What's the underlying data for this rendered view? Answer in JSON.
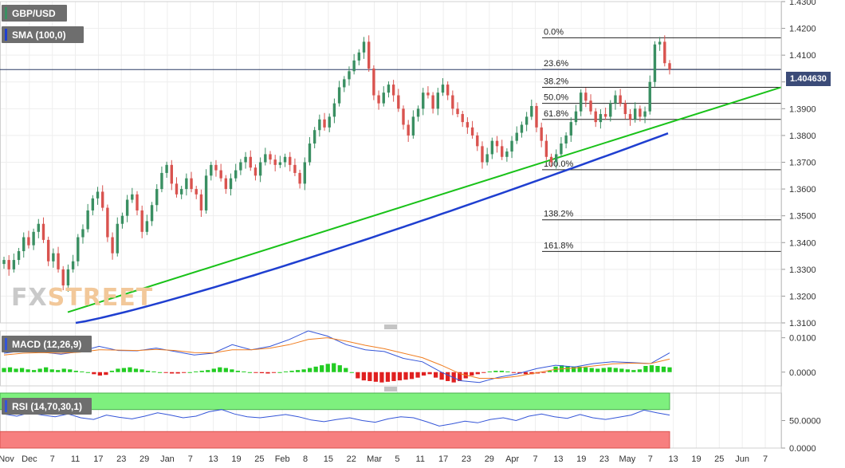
{
  "symbol_label": "GBP/USD",
  "sma_label": "SMA (100,0)",
  "macd_label": "MACD (12,26,9)",
  "rsi_label": "RSI (14,70,30,1)",
  "last_price": "1.404630",
  "watermark": {
    "a": "FX",
    "b": "STREET"
  },
  "colors": {
    "up": "#3a8f62",
    "down": "#d9534f",
    "sma": "#1f3fd0",
    "trend": "#19c219",
    "macd_line": "#3455d8",
    "signal_line": "#f07d20",
    "hist_pos": "#22cc22",
    "hist_neg": "#e02020",
    "rsi_line": "#3455d8",
    "rsi_overbought": "#7ef07e",
    "rsi_oversold": "#f77f7f",
    "fib_line": "#222222",
    "last_price_bg": "#3b4b78"
  },
  "chart_data": [
    {
      "type": "candlestick",
      "title": "GBP/USD",
      "ylim": [
        1.31,
        1.43
      ],
      "y_ticks": [
        "1.4300",
        "1.4200",
        "1.4100",
        "1.4000",
        "1.3900",
        "1.3800",
        "1.3700",
        "1.3600",
        "1.3500",
        "1.3400",
        "1.3300",
        "1.3200",
        "1.3100"
      ],
      "x_ticks": [
        "Nov",
        "Dec",
        "7",
        "11",
        "17",
        "23",
        "29",
        "Jan",
        "7",
        "13",
        "19",
        "25",
        "Feb",
        "8",
        "15",
        "22",
        "Mar",
        "5",
        "11",
        "17",
        "23",
        "29",
        "Apr",
        "7",
        "13",
        "19",
        "23",
        "May",
        "7",
        "13",
        "19",
        "25",
        "Jun",
        "7"
      ],
      "closes": [
        1.3335,
        1.33,
        1.3335,
        1.3368,
        1.342,
        1.339,
        1.344,
        1.347,
        1.341,
        1.333,
        1.336,
        1.33,
        1.324,
        1.33,
        1.333,
        1.342,
        1.345,
        1.352,
        1.3565,
        1.359,
        1.353,
        1.342,
        1.336,
        1.347,
        1.35,
        1.356,
        1.358,
        1.352,
        1.344,
        1.348,
        1.354,
        1.36,
        1.366,
        1.369,
        1.362,
        1.358,
        1.36,
        1.364,
        1.36,
        1.358,
        1.352,
        1.365,
        1.369,
        1.367,
        1.364,
        1.36,
        1.364,
        1.367,
        1.37,
        1.372,
        1.368,
        1.365,
        1.37,
        1.373,
        1.371,
        1.369,
        1.37,
        1.372,
        1.369,
        1.366,
        1.362,
        1.37,
        1.377,
        1.382,
        1.386,
        1.383,
        1.387,
        1.392,
        1.398,
        1.401,
        1.404,
        1.408,
        1.411,
        1.415,
        1.405,
        1.395,
        1.392,
        1.396,
        1.399,
        1.395,
        1.39,
        1.384,
        1.38,
        1.387,
        1.39,
        1.396,
        1.395,
        1.39,
        1.396,
        1.399,
        1.395,
        1.39,
        1.388,
        1.385,
        1.383,
        1.38,
        1.376,
        1.37,
        1.373,
        1.378,
        1.376,
        1.372,
        1.374,
        1.378,
        1.381,
        1.384,
        1.387,
        1.391,
        1.383,
        1.378,
        1.372,
        1.37,
        1.373,
        1.377,
        1.38,
        1.385,
        1.389,
        1.396,
        1.393,
        1.389,
        1.385,
        1.388,
        1.387,
        1.392,
        1.395,
        1.392,
        1.388,
        1.386,
        1.39,
        1.387,
        1.389,
        1.4,
        1.414,
        1.415,
        1.407,
        1.4046
      ],
      "sma_100": {
        "start": 1.31,
        "end": 1.3808
      },
      "trendline": {
        "start": 1.314,
        "end": 1.398
      },
      "fibonacci": [
        {
          "label": "0.0%",
          "value": 1.4165
        },
        {
          "label": "23.6%",
          "value": 1.4047
        },
        {
          "label": "38.2%",
          "value": 1.398
        },
        {
          "label": "50.0%",
          "value": 1.392
        },
        {
          "label": "61.8%",
          "value": 1.386
        },
        {
          "label": "100.0%",
          "value": 1.3672
        },
        {
          "label": "138.2%",
          "value": 1.3485
        },
        {
          "label": "161.8%",
          "value": 1.3367
        }
      ],
      "last_value": 1.40463
    },
    {
      "type": "line",
      "title": "MACD (12,26,9)",
      "ylim": [
        -0.004,
        0.012
      ],
      "y_ticks": [
        "0.0100",
        "0.0000"
      ],
      "series": [
        {
          "name": "MACD",
          "values": [
            0.0055,
            0.0062,
            0.0058,
            0.0052,
            0.006,
            0.0075,
            0.0063,
            0.0062,
            0.007,
            0.006,
            0.005,
            0.0055,
            0.008,
            0.0065,
            0.0075,
            0.0095,
            0.012,
            0.0105,
            0.008,
            0.0065,
            0.006,
            0.004,
            0.003,
            0.0,
            -0.0025,
            -0.003,
            -0.0015,
            -0.0005,
            0.001,
            0.002,
            0.0015,
            0.0025,
            0.003,
            0.0028,
            0.0025,
            0.0056
          ]
        },
        {
          "name": "Signal",
          "values": [
            0.005,
            0.0055,
            0.0057,
            0.0055,
            0.0058,
            0.0065,
            0.0064,
            0.0063,
            0.0066,
            0.0063,
            0.0057,
            0.0056,
            0.0065,
            0.0065,
            0.007,
            0.008,
            0.0095,
            0.01,
            0.009,
            0.0078,
            0.0068,
            0.0055,
            0.0042,
            0.002,
            -0.0005,
            -0.0018,
            -0.0018,
            -0.0012,
            -0.0002,
            0.0008,
            0.0012,
            0.0018,
            0.0024,
            0.0026,
            0.0025,
            0.0038
          ]
        }
      ],
      "histogram": [
        0.0012,
        0.0014,
        0.001,
        0.0012,
        0.0008,
        0.0006,
        0.001,
        0.0014,
        0.0008,
        0.0006,
        0.001,
        0.0008,
        0.0004,
        0.0002,
        0.0,
        -0.0006,
        -0.001,
        -0.0008,
        0.0004,
        0.001,
        0.0012,
        0.0014,
        0.001,
        0.0008,
        0.0004,
        0.0002,
        0.0,
        -0.0002,
        -0.0004,
        -0.0004,
        -0.0002,
        0.0,
        0.0002,
        0.0004,
        0.0006,
        0.001,
        0.0014,
        0.0012,
        0.0008,
        0.0004,
        0.0002,
        0.0,
        -0.0002,
        -0.0003,
        -0.0004,
        -0.0002,
        0.0,
        0.0002,
        0.0004,
        0.0006,
        0.0008,
        0.0012,
        0.0016,
        0.002,
        0.0024,
        0.0026,
        0.002,
        0.0012,
        0.0,
        -0.0018,
        -0.0024,
        -0.0026,
        -0.0028,
        -0.003,
        -0.0028,
        -0.0026,
        -0.0024,
        -0.0022,
        -0.002,
        -0.0016,
        -0.001,
        -0.0006,
        -0.0016,
        -0.0022,
        -0.0026,
        -0.003,
        -0.0026,
        -0.0018,
        -0.001,
        -0.0006,
        -0.0002,
        0.0002,
        0.0004,
        0.0004,
        0.0002,
        -0.0002,
        -0.0004,
        -0.0006,
        -0.0006,
        -0.0004,
        -0.0002,
        0.0004,
        0.0016,
        0.002,
        0.0018,
        0.0016,
        0.0016,
        0.0014,
        0.0012,
        0.001,
        0.0012,
        0.0014,
        0.0012,
        0.001,
        0.0008,
        0.0006,
        0.0008,
        0.0018,
        0.002,
        0.0018,
        0.0016,
        0.0014
      ]
    },
    {
      "type": "line",
      "title": "RSI (14,70,30,1)",
      "ylim": [
        0,
        100
      ],
      "y_ticks": [
        "50.0000",
        "0.0000"
      ],
      "series": [
        {
          "name": "RSI",
          "values": [
            62,
            58,
            64,
            60,
            57,
            62,
            55,
            52,
            60,
            56,
            53,
            58,
            64,
            60,
            55,
            58,
            66,
            70,
            62,
            57,
            55,
            58,
            61,
            57,
            51,
            48,
            52,
            55,
            50,
            47,
            53,
            57,
            55,
            48,
            40,
            44,
            49,
            46,
            52,
            55,
            50,
            58,
            62,
            57,
            54,
            61,
            55,
            52,
            56,
            60,
            69,
            64,
            60
          ]
        }
      ],
      "overbought": 70,
      "oversold": 30
    }
  ]
}
